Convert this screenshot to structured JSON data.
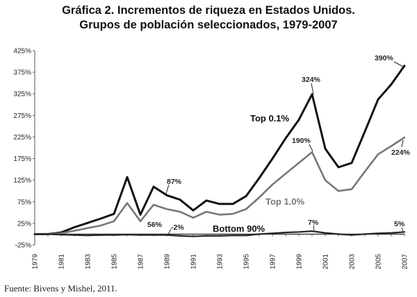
{
  "title_line1": "Gráfica 2. Incrementos de riqueza en Estados Unidos.",
  "title_line2": "Grupos de población seleccionados, 1979-2007",
  "source": "Fuente: Bivens y Mishel, 2011.",
  "chart_data": {
    "type": "line",
    "x": [
      1979,
      1980,
      1981,
      1982,
      1983,
      1984,
      1985,
      1986,
      1987,
      1988,
      1989,
      1990,
      1991,
      1992,
      1993,
      1994,
      1995,
      1996,
      1997,
      1998,
      1999,
      2000,
      2001,
      2002,
      2003,
      2004,
      2005,
      2006,
      2007
    ],
    "xtick_labels": [
      "1979",
      "1981",
      "1983",
      "1985",
      "1987",
      "1989",
      "1991",
      "1993",
      "1995",
      "1997",
      "1999",
      "2001",
      "2003",
      "2005",
      "2007"
    ],
    "ylim": [
      -25,
      425
    ],
    "ytick_labels": [
      "-25%",
      "25%",
      "75%",
      "125%",
      "175%",
      "225%",
      "275%",
      "325%",
      "375%",
      "425%"
    ],
    "series": [
      {
        "name": "Top 0.1%",
        "color": "#111111",
        "values": [
          0,
          0,
          4,
          16,
          26,
          36,
          47,
          132,
          45,
          110,
          90,
          80,
          55,
          78,
          70,
          70,
          88,
          130,
          175,
          222,
          265,
          324,
          198,
          155,
          165,
          238,
          312,
          347,
          390
        ]
      },
      {
        "name": "Top 1.0%",
        "color": "#777777",
        "values": [
          0,
          0,
          2,
          8,
          14,
          20,
          30,
          72,
          30,
          68,
          58,
          52,
          38,
          52,
          45,
          47,
          58,
          85,
          115,
          140,
          165,
          190,
          125,
          100,
          104,
          145,
          185,
          204,
          224
        ]
      },
      {
        "name": "Bottom 90%",
        "color": "#222222",
        "values": [
          0,
          0,
          -1,
          -2,
          -3,
          -2,
          -2,
          -1,
          -2,
          -2,
          -2,
          -4,
          -5,
          -4,
          -4,
          -3,
          -3,
          0,
          2,
          4,
          5,
          7,
          3,
          0,
          -2,
          0,
          2,
          3,
          5
        ]
      }
    ],
    "annotations": [
      "390%",
      "324%",
      "190%",
      "224%",
      "87%",
      "56%",
      "-2%",
      "7%",
      "5%"
    ],
    "grid": false
  }
}
